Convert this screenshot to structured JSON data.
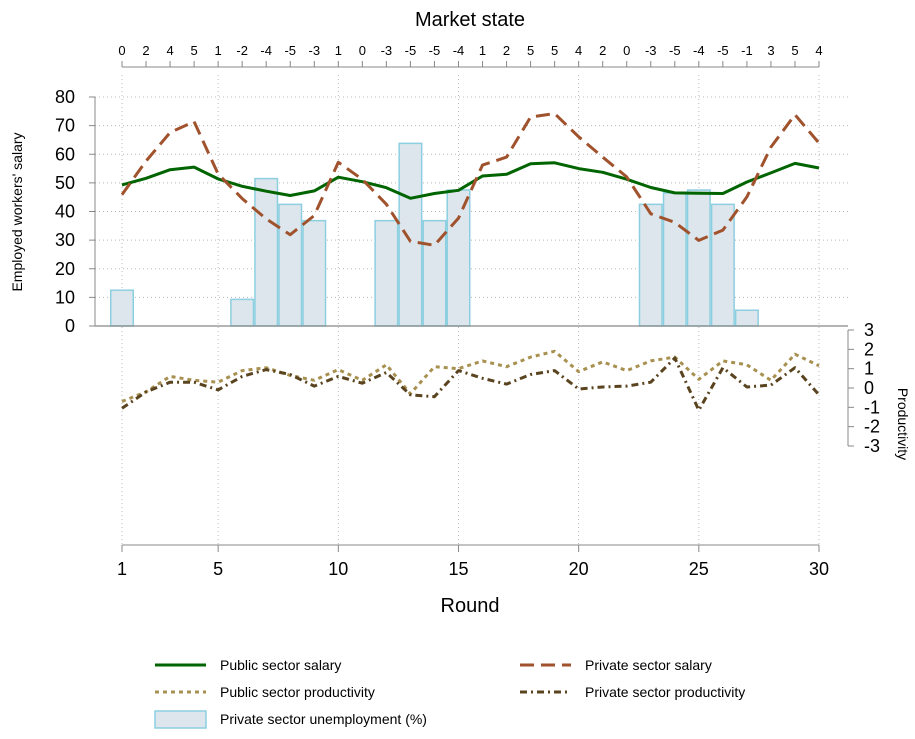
{
  "chart_data": {
    "type": "line",
    "top_axis": {
      "title": "Market state",
      "ticks": [
        "0",
        "2",
        "4",
        "5",
        "1",
        "-2",
        "-4",
        "-5",
        "-3",
        "1",
        "0",
        "-3",
        "-5",
        "-5",
        "-4",
        "1",
        "2",
        "5",
        "5",
        "4",
        "2",
        "0",
        "-3",
        "-5",
        "-4",
        "-5",
        "-1",
        "3",
        "5",
        "4"
      ]
    },
    "xlabel": "Round",
    "x_ticks": [
      1,
      5,
      10,
      15,
      20,
      25,
      30
    ],
    "xlim": [
      1,
      30
    ],
    "ylabel_left": "Employed workers' salary",
    "ylim_left": [
      0,
      80
    ],
    "y_ticks_left": [
      0,
      10,
      20,
      30,
      40,
      50,
      60,
      70,
      80
    ],
    "ylabel_right": "Productivity",
    "ylim_right": [
      -3,
      3
    ],
    "y_ticks_right": [
      -3,
      -2,
      -1,
      0,
      1,
      2,
      3
    ],
    "grid": true,
    "legend_position": "bottom",
    "x": [
      1,
      2,
      3,
      4,
      5,
      6,
      7,
      8,
      9,
      10,
      11,
      12,
      13,
      14,
      15,
      16,
      17,
      18,
      19,
      20,
      21,
      22,
      23,
      24,
      25,
      26,
      27,
      28,
      29,
      30
    ],
    "series": [
      {
        "name": "Public sector salary",
        "kind": "line",
        "axis": "left",
        "color": "#006400",
        "dash": "solid",
        "values": [
          49.3,
          51.6,
          54.6,
          55.5,
          51.4,
          48.8,
          47.1,
          45.6,
          47.2,
          52.0,
          50.4,
          48.3,
          44.6,
          46.3,
          47.4,
          52.4,
          53.0,
          56.7,
          57.0,
          55.0,
          53.7,
          51.3,
          48.4,
          46.5,
          46.4,
          46.3,
          50.3,
          53.5,
          56.8,
          55.2
        ]
      },
      {
        "name": "Private sector salary",
        "kind": "line",
        "axis": "left",
        "color": "#a0522d",
        "dash": "dashed",
        "values": [
          45.9,
          57.6,
          67.6,
          71.4,
          53.1,
          44.5,
          37.4,
          31.9,
          38.6,
          57.2,
          51.2,
          42.5,
          29.6,
          28.2,
          37.7,
          56.2,
          59.0,
          73.0,
          74.2,
          66.1,
          59.0,
          52.1,
          39.2,
          36.2,
          29.9,
          33.5,
          45.1,
          62.5,
          73.8,
          63.9
        ]
      },
      {
        "name": "Public sector productivity",
        "kind": "line",
        "axis": "right",
        "color": "#a89050",
        "dash": "dotted",
        "values": [
          -0.7,
          -0.2,
          0.6,
          0.4,
          0.3,
          0.9,
          1.05,
          0.65,
          0.4,
          0.95,
          0.4,
          1.2,
          -0.3,
          1.1,
          1.0,
          1.4,
          1.1,
          1.6,
          1.9,
          0.85,
          1.35,
          0.9,
          1.4,
          1.6,
          0.45,
          1.4,
          1.2,
          0.4,
          1.75,
          1.15
        ]
      },
      {
        "name": "Private sector productivity",
        "kind": "line",
        "axis": "right",
        "color": "#5a4420",
        "dash": "dashdot",
        "values": [
          -1.05,
          -0.2,
          0.3,
          0.3,
          -0.1,
          0.6,
          0.95,
          0.7,
          0.1,
          0.6,
          0.25,
          0.8,
          -0.35,
          -0.45,
          0.9,
          0.5,
          0.2,
          0.7,
          0.9,
          -0.05,
          0.05,
          0.1,
          0.3,
          1.55,
          -1.15,
          1.05,
          0.05,
          0.15,
          1.05,
          -0.35
        ]
      },
      {
        "name": "Private sector unemployment (%)",
        "kind": "bar",
        "axis": "left",
        "fill": "#dde6ec",
        "stroke": "#8ccfe0",
        "values": [
          12.5,
          0,
          0,
          0,
          0,
          9.3,
          51.5,
          42.5,
          36.8,
          0,
          0,
          36.8,
          63.8,
          36.8,
          47.5,
          0,
          0,
          0,
          0,
          0,
          0,
          0,
          42.5,
          46.5,
          47.5,
          42.5,
          5.5,
          0,
          0,
          0
        ]
      }
    ]
  }
}
